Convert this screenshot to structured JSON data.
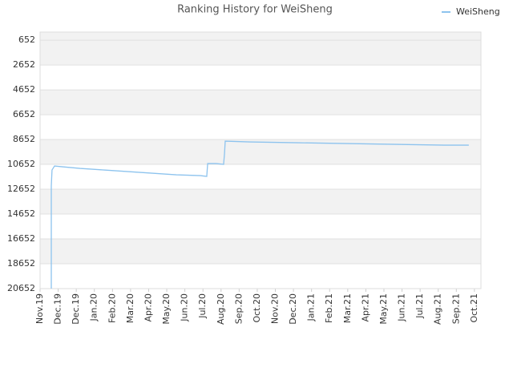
{
  "chart_data": {
    "type": "line",
    "title": "Ranking History for WeiSheng",
    "series": [
      {
        "name": "WeiSheng",
        "color": "#8dc3ee",
        "x": [
          0.62,
          0.62,
          0.66,
          0.8,
          1.24,
          2.21,
          3.54,
          4.87,
          6.2,
          7.53,
          8.86,
          9.21,
          9.26,
          9.74,
          10.14,
          10.19,
          10.23,
          11.6,
          14.26,
          16.96,
          19.66,
          22.36,
          23.69
        ],
        "values": [
          20652,
          12394,
          11104,
          10781,
          10845,
          10974,
          11104,
          11233,
          11362,
          11491,
          11555,
          11620,
          10587,
          10587,
          10652,
          9813,
          8781,
          8845,
          8910,
          8974,
          9039,
          9103,
          9103
        ]
      }
    ],
    "ylim": [
      20652,
      0
    ],
    "yticks": [
      652,
      2652,
      4652,
      6652,
      8652,
      10652,
      12652,
      14652,
      16652,
      18652,
      20652
    ],
    "xlim": [
      0,
      24.36
    ],
    "xticks": [
      {
        "value": 0,
        "label": "Nov.19"
      },
      {
        "value": 1,
        "label": "Dec.19"
      },
      {
        "value": 2,
        "label": "Dec.19"
      },
      {
        "value": 3,
        "label": "Jan.20"
      },
      {
        "value": 4,
        "label": "Feb.20"
      },
      {
        "value": 5,
        "label": "Mar.20"
      },
      {
        "value": 6,
        "label": "Apr.20"
      },
      {
        "value": 7,
        "label": "May.20"
      },
      {
        "value": 8,
        "label": "Jun.20"
      },
      {
        "value": 9,
        "label": "Jul.20"
      },
      {
        "value": 10,
        "label": "Aug.20"
      },
      {
        "value": 11,
        "label": "Sep.20"
      },
      {
        "value": 12,
        "label": "Oct.20"
      },
      {
        "value": 13,
        "label": "Nov.20"
      },
      {
        "value": 14,
        "label": "Dec.20"
      },
      {
        "value": 15,
        "label": "Jan.21"
      },
      {
        "value": 16,
        "label": "Feb.21"
      },
      {
        "value": 17,
        "label": "Mar.21"
      },
      {
        "value": 18,
        "label": "Apr.21"
      },
      {
        "value": 19,
        "label": "May.21"
      },
      {
        "value": 20,
        "label": "Jun.21"
      },
      {
        "value": 21,
        "label": "Jul.21"
      },
      {
        "value": 22,
        "label": "Aug.21"
      },
      {
        "value": 23,
        "label": "Sep.21"
      },
      {
        "value": 24,
        "label": "Oct.21"
      }
    ],
    "grid": true,
    "legend": "top-right"
  }
}
